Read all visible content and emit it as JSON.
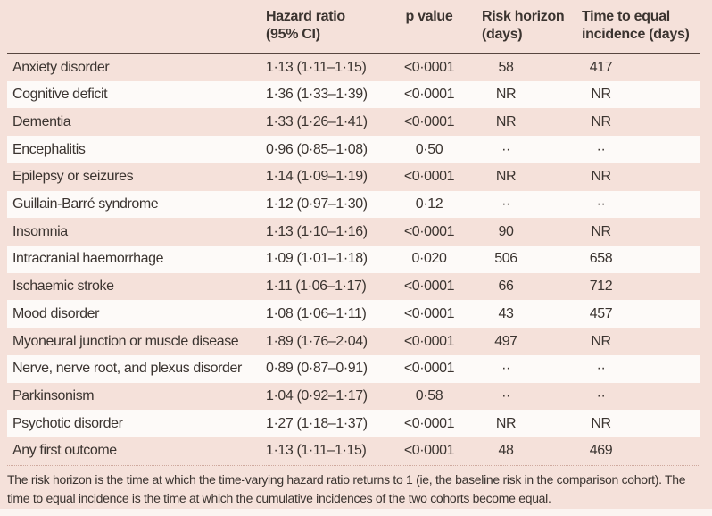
{
  "colors": {
    "page_pink": "#f5e1da",
    "stripe_white": "#fdfaf8",
    "rule_dark": "#584640",
    "text_dark": "#3b3430"
  },
  "table": {
    "columns": [
      "Hazard ratio (95% CI)",
      "p value",
      "Risk horizon (days)",
      "Time to equal incidence (days)"
    ],
    "rows": [
      {
        "label": "Anxiety disorder",
        "hr": "1·13 (1·11–1·15)",
        "p": "<0·0001",
        "risk_horizon": "58",
        "time_to_equal": "417"
      },
      {
        "label": "Cognitive deficit",
        "hr": "1·36 (1·33–1·39)",
        "p": "<0·0001",
        "risk_horizon": "NR",
        "time_to_equal": "NR"
      },
      {
        "label": "Dementia",
        "hr": "1·33 (1·26–1·41)",
        "p": "<0·0001",
        "risk_horizon": "NR",
        "time_to_equal": "NR"
      },
      {
        "label": "Encephalitis",
        "hr": "0·96 (0·85–1·08)",
        "p": "0·50",
        "risk_horizon": "··",
        "time_to_equal": "··"
      },
      {
        "label": "Epilepsy or seizures",
        "hr": "1·14 (1·09–1·19)",
        "p": "<0·0001",
        "risk_horizon": "NR",
        "time_to_equal": "NR"
      },
      {
        "label": "Guillain-Barré syndrome",
        "hr": "1·12 (0·97–1·30)",
        "p": "0·12",
        "risk_horizon": "··",
        "time_to_equal": "··"
      },
      {
        "label": "Insomnia",
        "hr": "1·13 (1·10–1·16)",
        "p": "<0·0001",
        "risk_horizon": "90",
        "time_to_equal": "NR"
      },
      {
        "label": "Intracranial haemorrhage",
        "hr": "1·09 (1·01–1·18)",
        "p": "0·020",
        "risk_horizon": "506",
        "time_to_equal": "658"
      },
      {
        "label": "Ischaemic stroke",
        "hr": "1·11 (1·06–1·17)",
        "p": "<0·0001",
        "risk_horizon": "66",
        "time_to_equal": "712"
      },
      {
        "label": "Mood disorder",
        "hr": "1·08 (1·06–1·11)",
        "p": "<0·0001",
        "risk_horizon": "43",
        "time_to_equal": "457"
      },
      {
        "label": "Myoneural junction or muscle disease",
        "hr": "1·89 (1·76–2·04)",
        "p": "<0·0001",
        "risk_horizon": "497",
        "time_to_equal": "NR"
      },
      {
        "label": "Nerve, nerve root, and plexus disorder",
        "hr": "0·89 (0·87–0·91)",
        "p": "<0·0001",
        "risk_horizon": "··",
        "time_to_equal": "··"
      },
      {
        "label": "Parkinsonism",
        "hr": "1·04 (0·92–1·17)",
        "p": "0·58",
        "risk_horizon": "··",
        "time_to_equal": "··"
      },
      {
        "label": "Psychotic disorder",
        "hr": "1·27 (1·18–1·37)",
        "p": "<0·0001",
        "risk_horizon": "NR",
        "time_to_equal": "NR"
      },
      {
        "label": "Any first outcome",
        "hr": "1·13 (1·11–1·15)",
        "p": "<0·0001",
        "risk_horizon": "48",
        "time_to_equal": "469"
      }
    ],
    "footnote": "The risk horizon is the time at which the time-varying hazard ratio returns to 1 (ie, the baseline risk in the comparison cohort). The time to equal incidence is the time at which the cumulative incidences of the two cohorts become equal."
  }
}
